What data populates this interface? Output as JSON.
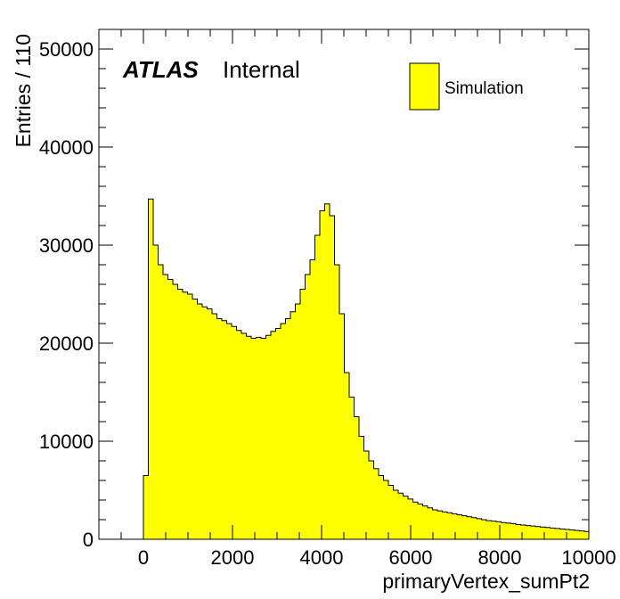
{
  "chart_data": {
    "type": "histogram",
    "xlabel": "primaryVertex_sumPt2",
    "ylabel": "Entries / 110",
    "xlim": [
      -1000,
      10000
    ],
    "ylim": [
      0,
      52000
    ],
    "bin_width": 110,
    "first_bin_start": 0,
    "x_ticks": [
      0,
      2000,
      4000,
      6000,
      8000,
      10000
    ],
    "x_tick_labels": [
      "0",
      "2000",
      "4000",
      "6000",
      "8000",
      "10000"
    ],
    "y_ticks": [
      0,
      10000,
      20000,
      30000,
      40000,
      50000
    ],
    "y_tick_labels": [
      "0",
      "10000",
      "20000",
      "30000",
      "40000",
      "50000"
    ],
    "fill_color": "#ffff00",
    "line_color": "#000000",
    "legend": {
      "position": "top-right",
      "entries": [
        "Simulation"
      ]
    },
    "label_bold": "ATLAS",
    "label_plain": "Internal",
    "values": [
      6500,
      34700,
      30000,
      28000,
      27000,
      26500,
      26000,
      25500,
      25200,
      25000,
      24500,
      24000,
      23700,
      23500,
      23000,
      22500,
      22300,
      22000,
      21700,
      21300,
      21000,
      20700,
      20500,
      20600,
      20500,
      20800,
      21200,
      21500,
      22000,
      22500,
      23200,
      24000,
      25500,
      27000,
      28500,
      31000,
      33500,
      34200,
      33000,
      28000,
      23000,
      17000,
      14500,
      12500,
      10500,
      9000,
      8000,
      7200,
      6500,
      6000,
      5500,
      5000,
      4700,
      4400,
      4100,
      3800,
      3600,
      3400,
      3200,
      3000,
      2900,
      2800,
      2700,
      2600,
      2500,
      2400,
      2300,
      2200,
      2100,
      2000,
      1900,
      1850,
      1800,
      1700,
      1650,
      1600,
      1500,
      1450,
      1400,
      1350,
      1300,
      1250,
      1200,
      1150,
      1100,
      1050,
      1000,
      950,
      900,
      850,
      800
    ]
  }
}
